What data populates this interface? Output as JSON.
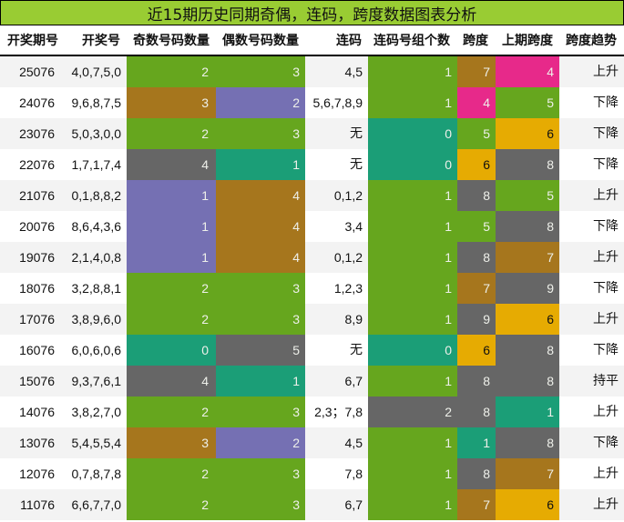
{
  "title": "近15期历史同期奇偶，连码，跨度数据图表分析",
  "headers": [
    "开奖期号",
    "开奖号",
    "奇数号码数量",
    "偶数号码数量",
    "连码",
    "连码号组个数",
    "跨度",
    "上期跨度",
    "跨度趋势"
  ],
  "colors": {
    "green": "#66a61e",
    "brown": "#a6761d",
    "purple": "#7570b3",
    "gray": "#666666",
    "teal": "#1b9e77",
    "magenta": "#e7298a",
    "gold": "#e6ab02",
    "title_bg": "#99cc33"
  },
  "rows": [
    {
      "period": "25076",
      "numbers": "4,0,7,5,0",
      "odd": "2",
      "even": "3",
      "consec": "4,5",
      "groups": "1",
      "span": "7",
      "prev_span": "4",
      "trend": "上升",
      "c_odd": "green",
      "c_even": "green",
      "c_groups": "green",
      "c_span": "brown",
      "c_prev": "magenta"
    },
    {
      "period": "24076",
      "numbers": "9,6,8,7,5",
      "odd": "3",
      "even": "2",
      "consec": "5,6,7,8,9",
      "groups": "1",
      "span": "4",
      "prev_span": "5",
      "trend": "下降",
      "c_odd": "brown",
      "c_even": "purple",
      "c_groups": "green",
      "c_span": "magenta",
      "c_prev": "green"
    },
    {
      "period": "23076",
      "numbers": "5,0,3,0,0",
      "odd": "2",
      "even": "3",
      "consec": "无",
      "groups": "0",
      "span": "5",
      "prev_span": "6",
      "trend": "下降",
      "c_odd": "green",
      "c_even": "green",
      "c_groups": "teal",
      "c_span": "green",
      "c_prev": "gold"
    },
    {
      "period": "22076",
      "numbers": "1,7,1,7,4",
      "odd": "4",
      "even": "1",
      "consec": "无",
      "groups": "0",
      "span": "6",
      "prev_span": "8",
      "trend": "下降",
      "c_odd": "gray",
      "c_even": "teal",
      "c_groups": "teal",
      "c_span": "gold",
      "c_prev": "gray"
    },
    {
      "period": "21076",
      "numbers": "0,1,8,8,2",
      "odd": "1",
      "even": "4",
      "consec": "0,1,2",
      "groups": "1",
      "span": "8",
      "prev_span": "5",
      "trend": "上升",
      "c_odd": "purple",
      "c_even": "brown",
      "c_groups": "green",
      "c_span": "gray",
      "c_prev": "green"
    },
    {
      "period": "20076",
      "numbers": "8,6,4,3,6",
      "odd": "1",
      "even": "4",
      "consec": "3,4",
      "groups": "1",
      "span": "5",
      "prev_span": "8",
      "trend": "下降",
      "c_odd": "purple",
      "c_even": "brown",
      "c_groups": "green",
      "c_span": "green",
      "c_prev": "gray"
    },
    {
      "period": "19076",
      "numbers": "2,1,4,0,8",
      "odd": "1",
      "even": "4",
      "consec": "0,1,2",
      "groups": "1",
      "span": "8",
      "prev_span": "7",
      "trend": "上升",
      "c_odd": "purple",
      "c_even": "brown",
      "c_groups": "green",
      "c_span": "gray",
      "c_prev": "brown"
    },
    {
      "period": "18076",
      "numbers": "3,2,8,8,1",
      "odd": "2",
      "even": "3",
      "consec": "1,2,3",
      "groups": "1",
      "span": "7",
      "prev_span": "9",
      "trend": "下降",
      "c_odd": "green",
      "c_even": "green",
      "c_groups": "green",
      "c_span": "brown",
      "c_prev": "gray"
    },
    {
      "period": "17076",
      "numbers": "3,8,9,6,0",
      "odd": "2",
      "even": "3",
      "consec": "8,9",
      "groups": "1",
      "span": "9",
      "prev_span": "6",
      "trend": "上升",
      "c_odd": "green",
      "c_even": "green",
      "c_groups": "green",
      "c_span": "gray",
      "c_prev": "gold"
    },
    {
      "period": "16076",
      "numbers": "6,0,6,0,6",
      "odd": "0",
      "even": "5",
      "consec": "无",
      "groups": "0",
      "span": "6",
      "prev_span": "8",
      "trend": "下降",
      "c_odd": "teal",
      "c_even": "gray",
      "c_groups": "teal",
      "c_span": "gold",
      "c_prev": "gray"
    },
    {
      "period": "15076",
      "numbers": "9,3,7,6,1",
      "odd": "4",
      "even": "1",
      "consec": "6,7",
      "groups": "1",
      "span": "8",
      "prev_span": "8",
      "trend": "持平",
      "c_odd": "gray",
      "c_even": "teal",
      "c_groups": "green",
      "c_span": "gray",
      "c_prev": "gray"
    },
    {
      "period": "14076",
      "numbers": "3,8,2,7,0",
      "odd": "2",
      "even": "3",
      "consec": "2,3；7,8",
      "groups": "2",
      "span": "8",
      "prev_span": "1",
      "trend": "上升",
      "c_odd": "green",
      "c_even": "green",
      "c_groups": "gray",
      "c_span": "gray",
      "c_prev": "teal"
    },
    {
      "period": "13076",
      "numbers": "5,4,5,5,4",
      "odd": "3",
      "even": "2",
      "consec": "4,5",
      "groups": "1",
      "span": "1",
      "prev_span": "8",
      "trend": "下降",
      "c_odd": "brown",
      "c_even": "purple",
      "c_groups": "green",
      "c_span": "teal",
      "c_prev": "gray"
    },
    {
      "period": "12076",
      "numbers": "0,7,8,7,8",
      "odd": "2",
      "even": "3",
      "consec": "7,8",
      "groups": "1",
      "span": "8",
      "prev_span": "7",
      "trend": "上升",
      "c_odd": "green",
      "c_even": "green",
      "c_groups": "green",
      "c_span": "gray",
      "c_prev": "brown"
    },
    {
      "period": "11076",
      "numbers": "6,6,7,7,0",
      "odd": "2",
      "even": "3",
      "consec": "6,7",
      "groups": "1",
      "span": "7",
      "prev_span": "6",
      "trend": "上升",
      "c_odd": "green",
      "c_even": "green",
      "c_groups": "green",
      "c_span": "brown",
      "c_prev": "gold"
    }
  ],
  "chart_data": {
    "type": "table",
    "title": "近15期历史同期奇偶，连码，跨度数据图表分析",
    "columns": [
      "开奖期号",
      "开奖号",
      "奇数号码数量",
      "偶数号码数量",
      "连码",
      "连码号组个数",
      "跨度",
      "上期跨度",
      "跨度趋势"
    ],
    "rows": [
      [
        "25076",
        "4,0,7,5,0",
        2,
        3,
        "4,5",
        1,
        7,
        4,
        "上升"
      ],
      [
        "24076",
        "9,6,8,7,5",
        3,
        2,
        "5,6,7,8,9",
        1,
        4,
        5,
        "下降"
      ],
      [
        "23076",
        "5,0,3,0,0",
        2,
        3,
        "无",
        0,
        5,
        6,
        "下降"
      ],
      [
        "22076",
        "1,7,1,7,4",
        4,
        1,
        "无",
        0,
        6,
        8,
        "下降"
      ],
      [
        "21076",
        "0,1,8,8,2",
        1,
        4,
        "0,1,2",
        1,
        8,
        5,
        "上升"
      ],
      [
        "20076",
        "8,6,4,3,6",
        1,
        4,
        "3,4",
        1,
        5,
        8,
        "下降"
      ],
      [
        "19076",
        "2,1,4,0,8",
        1,
        4,
        "0,1,2",
        1,
        8,
        7,
        "上升"
      ],
      [
        "18076",
        "3,2,8,8,1",
        2,
        3,
        "1,2,3",
        1,
        7,
        9,
        "下降"
      ],
      [
        "17076",
        "3,8,9,6,0",
        2,
        3,
        "8,9",
        1,
        9,
        6,
        "上升"
      ],
      [
        "16076",
        "6,0,6,0,6",
        0,
        5,
        "无",
        0,
        6,
        8,
        "下降"
      ],
      [
        "15076",
        "9,3,7,6,1",
        4,
        1,
        "6,7",
        1,
        8,
        8,
        "持平"
      ],
      [
        "14076",
        "3,8,2,7,0",
        2,
        3,
        "2,3；7,8",
        2,
        8,
        1,
        "上升"
      ],
      [
        "13076",
        "5,4,5,5,4",
        3,
        2,
        "4,5",
        1,
        1,
        8,
        "下降"
      ],
      [
        "12076",
        "0,7,8,7,8",
        2,
        3,
        "7,8",
        1,
        8,
        7,
        "上升"
      ],
      [
        "11076",
        "6,6,7,7,0",
        2,
        3,
        "6,7",
        1,
        7,
        6,
        "上升"
      ]
    ]
  }
}
